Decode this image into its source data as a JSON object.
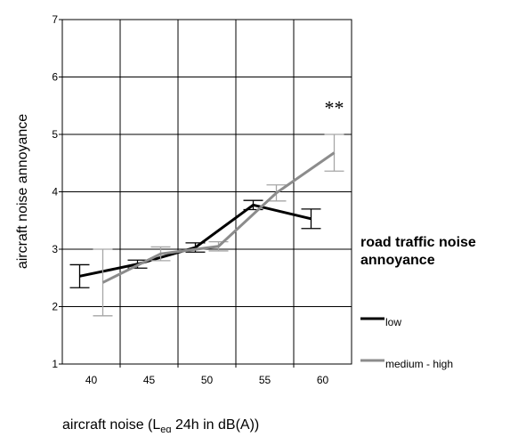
{
  "chart_data": {
    "type": "line",
    "xlabel": [
      "aircraft noise (L",
      "eq",
      " 24h in dB(A))"
    ],
    "ylabel": "aircraft noise annoyance",
    "xlim": [
      37.5,
      62.5
    ],
    "xticks": [
      40,
      45,
      50,
      55,
      60
    ],
    "xgrid_lines": [
      42.5,
      47.5,
      52.5,
      57.5
    ],
    "ylim": [
      1,
      7
    ],
    "yticks": [
      1,
      2,
      3,
      4,
      5,
      6,
      7
    ],
    "grid": true,
    "legend_title": [
      "road traffic noise",
      "annoyance"
    ],
    "legend_position": "right",
    "annotation": {
      "text": "**",
      "x": 61,
      "y": 5.35
    },
    "series": [
      {
        "name": "low",
        "color": "#000000",
        "x": [
          39,
          44,
          49,
          54,
          59
        ],
        "values": [
          2.53,
          2.74,
          3.03,
          3.77,
          3.53
        ],
        "errors": [
          0.2,
          0.07,
          0.08,
          0.08,
          0.17
        ]
      },
      {
        "name": "medium - high",
        "color": "#8c8c8c",
        "x": [
          41,
          46,
          51,
          56,
          61
        ],
        "values": [
          2.42,
          2.92,
          3.05,
          3.98,
          4.68
        ],
        "errors": [
          0.58,
          0.12,
          0.08,
          0.14,
          0.32
        ]
      }
    ]
  }
}
